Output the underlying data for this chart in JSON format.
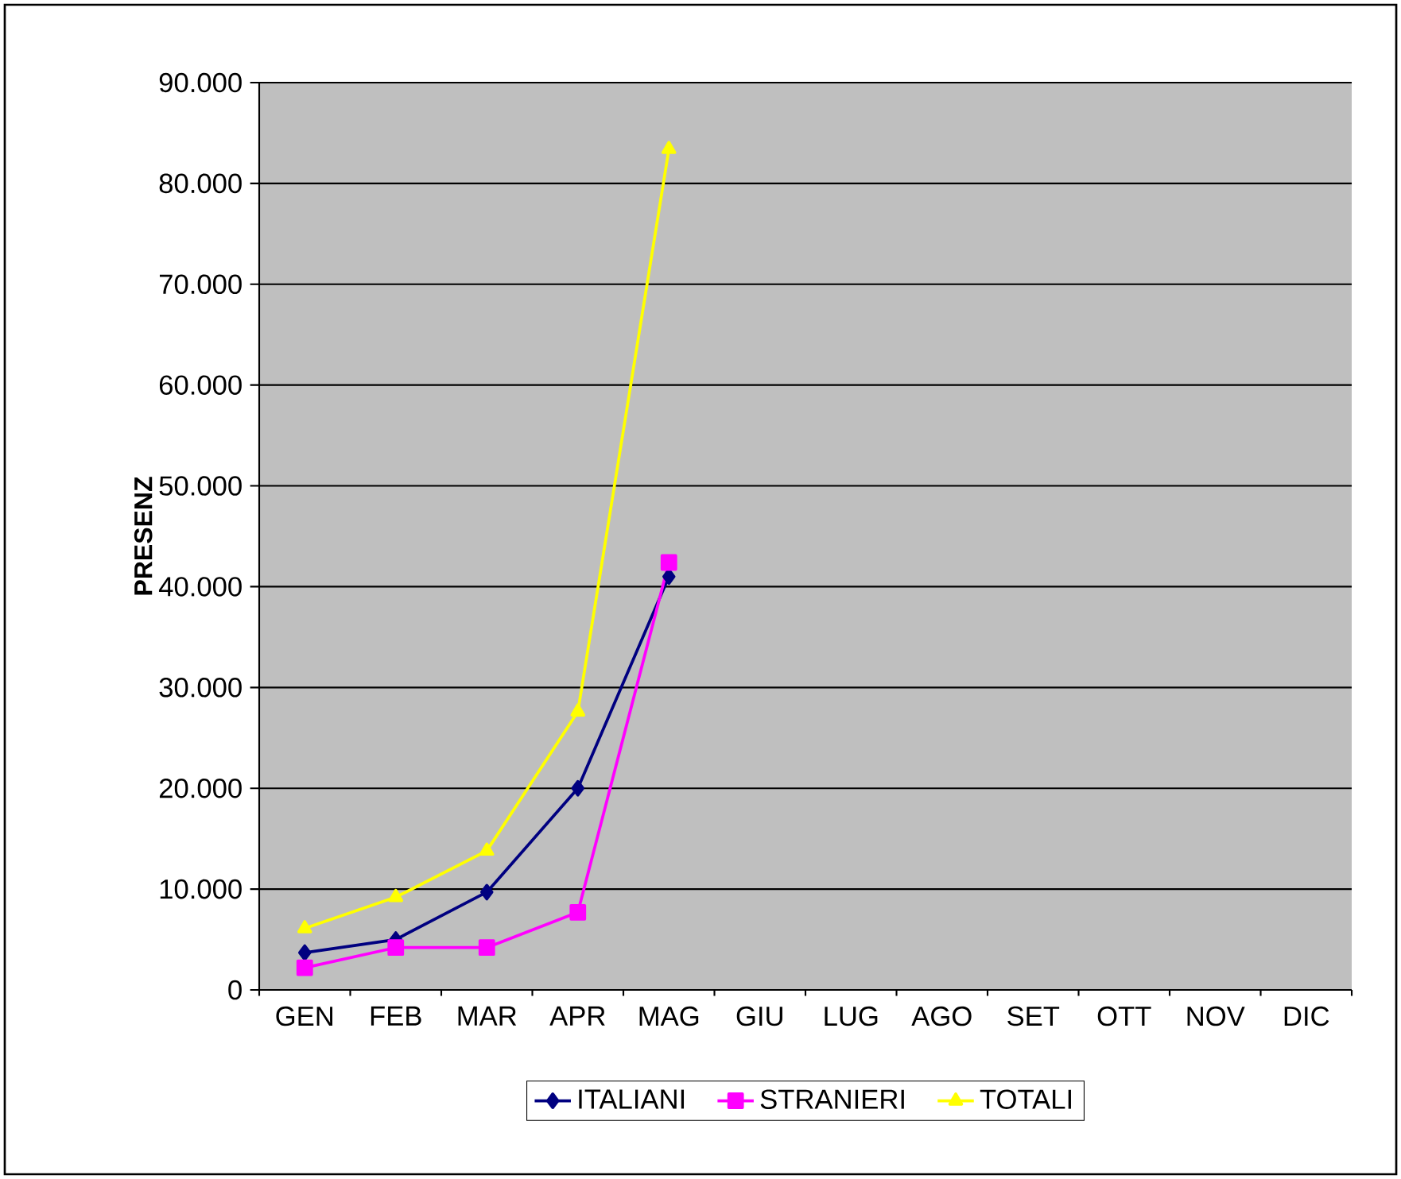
{
  "chart_data": {
    "type": "line",
    "ylabel": "PRESENZ",
    "categories": [
      "GEN",
      "FEB",
      "MAR",
      "APR",
      "MAG",
      "GIU",
      "LUG",
      "AGO",
      "SET",
      "OTT",
      "NOV",
      "DIC"
    ],
    "ylim": [
      0,
      90000
    ],
    "yticks": [
      0,
      {
        "value": 10000,
        "label": "10.000"
      },
      {
        "value": 20000,
        "label": "20.000"
      },
      {
        "value": 30000,
        "label": "30.000"
      },
      {
        "value": 40000,
        "label": "40.000"
      },
      {
        "value": 50000,
        "label": "50.000"
      },
      {
        "value": 60000,
        "label": "60.000"
      },
      {
        "value": 70000,
        "label": "70.000"
      },
      {
        "value": 80000,
        "label": "80.000"
      },
      {
        "value": 90000,
        "label": "90.000"
      }
    ],
    "grid": "y",
    "legend": "bottom",
    "line_style": "solid",
    "series": [
      {
        "name": "ITALIANI",
        "color": "#000080",
        "marker": "diamond",
        "values": [
          3700,
          5000,
          9700,
          20000,
          41000,
          null,
          null,
          null,
          null,
          null,
          null,
          null
        ]
      },
      {
        "name": "STRANIERI",
        "color": "#ff00ff",
        "marker": "square",
        "values": [
          2200,
          4200,
          4200,
          7700,
          42400,
          null,
          null,
          null,
          null,
          null,
          null,
          null
        ]
      },
      {
        "name": "TOTALI",
        "color": "#ffff00",
        "marker": "triangle",
        "values": [
          6100,
          9200,
          13800,
          27600,
          83400,
          null,
          null,
          null,
          null,
          null,
          null,
          null
        ]
      }
    ]
  }
}
